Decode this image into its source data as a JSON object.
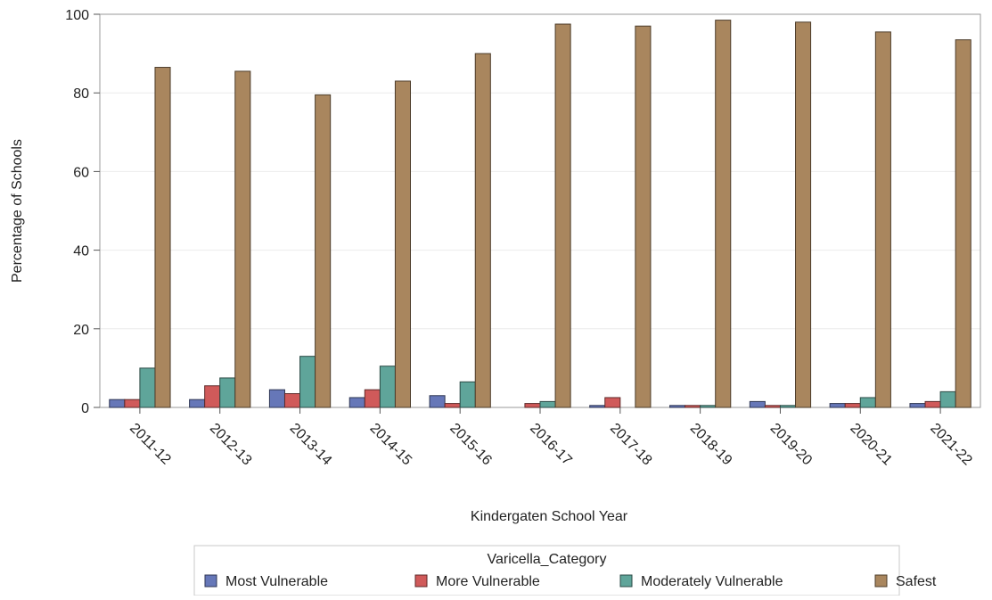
{
  "chart_data": {
    "type": "bar",
    "title": "",
    "xlabel": "Kindergaten School Year",
    "ylabel": "Percentage of Schools",
    "ylim": [
      0,
      100
    ],
    "yticks": [
      0,
      20,
      40,
      60,
      80,
      100
    ],
    "grid": true,
    "legend_title": "Varicella_Category",
    "legend_placement": "bottom",
    "categories": [
      "2011-12",
      "2012-13",
      "2013-14",
      "2014-15",
      "2015-16",
      "2016-17",
      "2017-18",
      "2018-19",
      "2019-20",
      "2020-21",
      "2021-22"
    ],
    "series": [
      {
        "name": "Most Vulnerable",
        "color": "#6677b8",
        "values": [
          2.0,
          2.0,
          4.5,
          2.5,
          3.0,
          0.0,
          0.5,
          0.5,
          1.5,
          1.0,
          1.0
        ]
      },
      {
        "name": "More Vulnerable",
        "color": "#d05a5a",
        "values": [
          2.0,
          5.5,
          3.5,
          4.5,
          1.0,
          1.0,
          2.5,
          0.5,
          0.5,
          1.0,
          1.5
        ]
      },
      {
        "name": "Moderately Vulnerable",
        "color": "#5fa59a",
        "values": [
          10.0,
          7.5,
          13.0,
          10.5,
          6.5,
          1.5,
          0.0,
          0.5,
          0.5,
          2.5,
          4.0
        ]
      },
      {
        "name": "Safest",
        "color": "#a9865e",
        "values": [
          86.5,
          85.5,
          79.5,
          83.0,
          90.0,
          97.5,
          97.0,
          98.5,
          98.0,
          95.5,
          93.5
        ]
      }
    ]
  }
}
